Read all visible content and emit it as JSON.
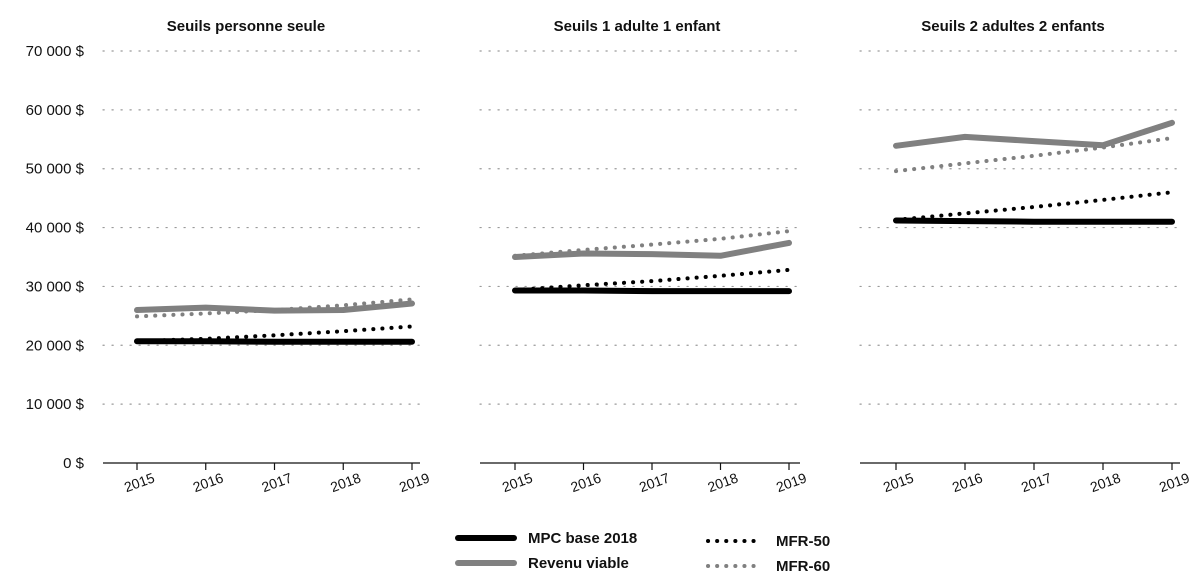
{
  "chart_data": {
    "type": "line",
    "y_axis": {
      "ylim": [
        0,
        70000
      ],
      "ticks": [
        0,
        10000,
        20000,
        30000,
        40000,
        50000,
        60000,
        70000
      ],
      "tick_labels": [
        "0 $",
        "10 000 $",
        "20 000 $",
        "30 000 $",
        "40 000 $",
        "50 000 $",
        "60 000 $",
        "70 000 $"
      ]
    },
    "x_categories": [
      "2015",
      "2016",
      "2017",
      "2018",
      "2019"
    ],
    "grid": "horizontal dotted",
    "legend_position": "bottom-center",
    "series_styles": [
      {
        "name": "MPC base 2018",
        "color": "#000000",
        "dash": "solid"
      },
      {
        "name": "Revenu viable",
        "color": "#808080",
        "dash": "solid"
      },
      {
        "name": "MFR-50",
        "color": "#000000",
        "dash": "dotted"
      },
      {
        "name": "MFR-60",
        "color": "#808080",
        "dash": "dotted"
      }
    ],
    "panels": [
      {
        "title": "Seuils personne seule",
        "series": [
          {
            "name": "MPC base 2018",
            "values": [
              20700,
              20700,
              20600,
              20600,
              20600
            ]
          },
          {
            "name": "Revenu viable",
            "values": [
              26000,
              26400,
              25900,
              26000,
              27100
            ]
          },
          {
            "name": "MFR-50",
            "values": [
              20700,
              21100,
              21700,
              22400,
              23200
            ]
          },
          {
            "name": "MFR-60",
            "values": [
              24900,
              25400,
              26000,
              26800,
              27800
            ]
          }
        ]
      },
      {
        "title": "Seuils 1 adulte 1 enfant",
        "series": [
          {
            "name": "MPC base 2018",
            "values": [
              29300,
              29300,
              29200,
              29200,
              29200
            ]
          },
          {
            "name": "Revenu viable",
            "values": [
              35000,
              35600,
              35500,
              35200,
              37400
            ]
          },
          {
            "name": "MFR-50",
            "values": [
              29400,
              30200,
              30900,
              31800,
              32800
            ]
          },
          {
            "name": "MFR-60",
            "values": [
              35200,
              36200,
              37100,
              38100,
              39400
            ]
          }
        ]
      },
      {
        "title": "Seuils 2 adultes 2 enfants",
        "series": [
          {
            "name": "MPC base 2018",
            "values": [
              41200,
              41100,
              41000,
              41000,
              41000
            ]
          },
          {
            "name": "Revenu viable",
            "values": [
              53900,
              55400,
              54700,
              54000,
              57800
            ]
          },
          {
            "name": "MFR-50",
            "values": [
              41300,
              42400,
              43500,
              44700,
              46000
            ]
          },
          {
            "name": "MFR-60",
            "values": [
              49600,
              50900,
              52200,
              53600,
              55200
            ]
          }
        ]
      }
    ]
  }
}
